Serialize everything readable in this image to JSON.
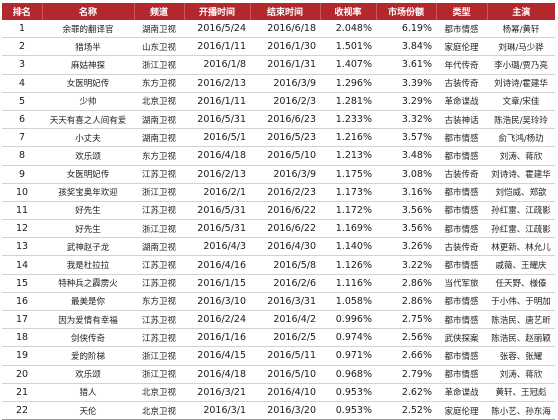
{
  "headers": [
    "排名",
    "名称",
    "频道",
    "开播时间",
    "结束时间",
    "收视率",
    "市场份额",
    "类型",
    "主演"
  ],
  "rows": [
    [
      "1",
      "余罪的翻译官",
      "湖南卫视",
      "2016/5/24",
      "2016/6/18",
      "2.048%",
      "6.19%",
      "都市情感",
      "杨幂/黄轩"
    ],
    [
      "2",
      "猎场半",
      "山东卫视",
      "2016/1/11",
      "2016/1/30",
      "1.501%",
      "3.84%",
      "家庭伦理",
      "刘琳/马少骅"
    ],
    [
      "3",
      "麻姑神探",
      "浙江卫视",
      "2016/1/8",
      "2016/1/31",
      "1.407%",
      "3.61%",
      "年代传奇",
      "李小璐/贾乃亮"
    ],
    [
      "4",
      "女医明妃传",
      "东方卫视",
      "2016/2/13",
      "2016/3/9",
      "1.296%",
      "3.39%",
      "古装传奇",
      "刘诗诗/霍建华"
    ],
    [
      "5",
      "少帅",
      "北京卫视",
      "2016/1/11",
      "2016/2/3",
      "1.281%",
      "3.29%",
      "革命谍战",
      "文章/宋佳"
    ],
    [
      "6",
      "天天有喜之人间有爱",
      "湖南卫视",
      "2016/5/31",
      "2016/6/23",
      "1.233%",
      "3.32%",
      "古装神话",
      "陈浩民/吴玲玲"
    ],
    [
      "7",
      "小丈夫",
      "湖南卫视",
      "2016/5/1",
      "2016/5/23",
      "1.216%",
      "3.57%",
      "都市情感",
      "俞飞鸿/杨玏"
    ],
    [
      "8",
      "欢乐颂",
      "东方卫视",
      "2016/4/18",
      "2016/5/10",
      "1.213%",
      "3.48%",
      "都市情感",
      "刘涛、蒋欣"
    ],
    [
      "9",
      "女医明妃传",
      "江苏卫视",
      "2016/2/13",
      "2016/3/9",
      "1.175%",
      "3.08%",
      "古装传奇",
      "刘诗诗、霍建华"
    ],
    [
      "10",
      "孩奖宝奥年欢迎",
      "浙江卫视",
      "2016/2/1",
      "2016/2/23",
      "1.173%",
      "3.16%",
      "都市情感",
      "刘恺威、郑歆"
    ],
    [
      "11",
      "好先生",
      "江苏卫视",
      "2016/5/31",
      "2016/6/22",
      "1.172%",
      "3.56%",
      "都市情感",
      "孙红雷、江疏影"
    ],
    [
      "12",
      "好先生",
      "浙江卫视",
      "2016/5/31",
      "2016/6/22",
      "1.169%",
      "3.56%",
      "都市情感",
      "孙红雷、江疏影"
    ],
    [
      "13",
      "武神赵子龙",
      "湖南卫视",
      "2016/4/3",
      "2016/4/30",
      "1.140%",
      "3.26%",
      "古装传奇",
      "林更新、林允儿"
    ],
    [
      "14",
      "我是杜拉拉",
      "江苏卫视",
      "2016/4/16",
      "2016/5/8",
      "1.126%",
      "3.22%",
      "都市情感",
      "戚薇、王耀庆"
    ],
    [
      "15",
      "特种兵之霹雳火",
      "江苏卫视",
      "2016/1/15",
      "2016/2/6",
      "1.116%",
      "2.86%",
      "当代军旅",
      "任天野、様傣"
    ],
    [
      "16",
      "最美是你",
      "东方卫视",
      "2016/3/10",
      "2016/3/31",
      "1.058%",
      "2.86%",
      "都市情感",
      "于小伟、于明加"
    ],
    [
      "17",
      "因为爱情有幸福",
      "江苏卫视",
      "2016/2/24",
      "2016/4/2",
      "0.996%",
      "2.75%",
      "都市情感",
      "陈浩民、唐艺昕"
    ],
    [
      "18",
      "剑侠传奇",
      "江苏卫视",
      "2016/1/16",
      "2016/2/5",
      "0.974%",
      "2.56%",
      "武侠探案",
      "陈浩民、赵丽颖"
    ],
    [
      "19",
      "爱的阶梯",
      "浙江卫视",
      "2016/4/15",
      "2016/5/11",
      "0.971%",
      "2.66%",
      "都市情感",
      "张蓉、张耀"
    ],
    [
      "20",
      "欢乐颂",
      "浙江卫视",
      "2016/4/18",
      "2016/5/10",
      "0.968%",
      "2.79%",
      "都市情感",
      "刘涛、蒋欣"
    ],
    [
      "21",
      "猎人",
      "北京卫视",
      "2016/3/21",
      "2016/4/10",
      "0.953%",
      "2.62%",
      "革命谍战",
      "黄轩、王冠彪"
    ],
    [
      "22",
      "天伦",
      "北京卫视",
      "2016/3/1",
      "2016/3/20",
      "0.953%",
      "2.52%",
      "家庭伦理",
      "陈小艺、孙东海"
    ]
  ]
}
